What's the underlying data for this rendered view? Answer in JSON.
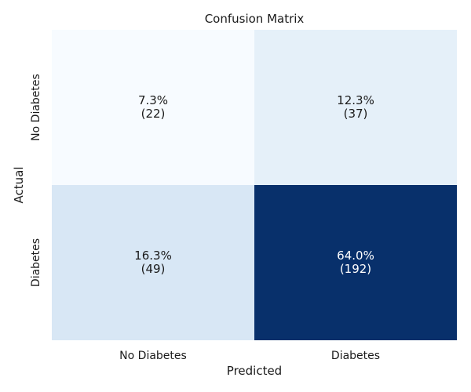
{
  "chart_data": {
    "type": "heatmap",
    "title": "Confusion Matrix",
    "xlabel": "Predicted",
    "ylabel": "Actual",
    "x_categories": [
      "No Diabetes",
      "Diabetes"
    ],
    "y_categories": [
      "No Diabetes",
      "Diabetes"
    ],
    "counts": [
      [
        22,
        37
      ],
      [
        49,
        192
      ]
    ],
    "percent_labels": [
      [
        "7.3%",
        "12.3%"
      ],
      [
        "16.3%",
        "64.0%"
      ]
    ],
    "count_labels": [
      [
        "(22)",
        "(37)"
      ],
      [
        "(49)",
        "(192)"
      ]
    ],
    "colorscale": {
      "name": "Blues",
      "low": "#f7fbff",
      "high": "#08306b"
    },
    "colorbar": false,
    "gridlines": false
  }
}
